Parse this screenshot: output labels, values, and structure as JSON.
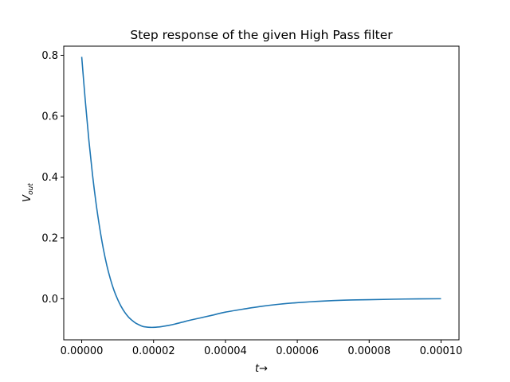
{
  "chart_data": {
    "type": "line",
    "title": "Step response of the given High Pass filter",
    "xlabel": "t→",
    "ylabel": "V",
    "ylabel_subscript": "out",
    "xlim": [
      -5e-06,
      0.000105
    ],
    "ylim": [
      -0.135,
      0.83
    ],
    "x_ticks": [
      0,
      2e-05,
      4e-05,
      6e-05,
      8e-05,
      0.0001
    ],
    "x_tick_labels": [
      "0.00000",
      "0.00002",
      "0.00004",
      "0.00006",
      "0.00008",
      "0.00010"
    ],
    "y_ticks": [
      0,
      0.2,
      0.4,
      0.6,
      0.8
    ],
    "y_tick_labels": [
      "0.0",
      "0.2",
      "0.4",
      "0.6",
      "0.8"
    ],
    "grid": false,
    "series": [
      {
        "color": "#1f77b4",
        "x": [
          0,
          1e-06,
          2e-06,
          3e-06,
          4e-06,
          5e-06,
          6e-06,
          7e-06,
          8e-06,
          9e-06,
          1e-05,
          1.1e-05,
          1.2e-05,
          1.3e-05,
          1.4e-05,
          1.5e-05,
          1.6e-05,
          1.7e-05,
          1.8e-05,
          1.9e-05,
          2e-05,
          2.2e-05,
          2.4e-05,
          2.6e-05,
          2.8e-05,
          3e-05,
          3.3e-05,
          3.6e-05,
          4e-05,
          4.5e-05,
          5e-05,
          5.5e-05,
          6e-05,
          6.5e-05,
          7e-05,
          7.5e-05,
          8e-05,
          9e-05,
          0.0001
        ],
        "y": [
          0.795,
          0.65,
          0.52,
          0.408,
          0.313,
          0.233,
          0.165,
          0.109,
          0.064,
          0.027,
          -0.002,
          -0.026,
          -0.045,
          -0.06,
          -0.071,
          -0.08,
          -0.086,
          -0.091,
          -0.093,
          -0.094,
          -0.094,
          -0.092,
          -0.088,
          -0.083,
          -0.077,
          -0.071,
          -0.063,
          -0.055,
          -0.044,
          -0.034,
          -0.025,
          -0.018,
          -0.013,
          -0.009,
          -0.006,
          -0.004,
          -0.003,
          -0.001,
          0.0
        ]
      }
    ]
  },
  "colors": {
    "line": "#1f77b4",
    "axes": "#000000",
    "background": "#ffffff"
  }
}
